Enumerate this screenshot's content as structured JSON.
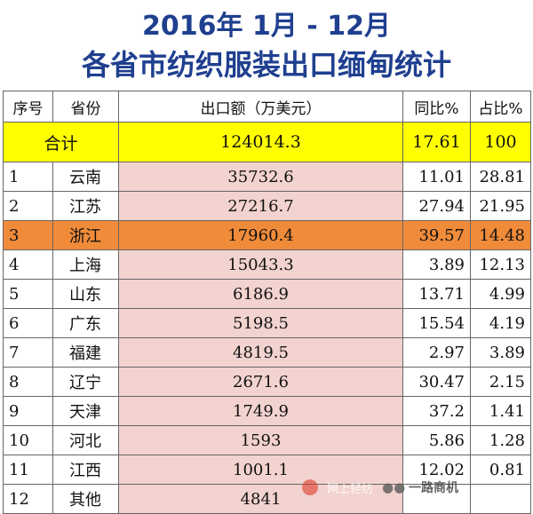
{
  "title": {
    "line1": "2016年 1月 - 12月",
    "line2": "各省市纺织服装出口缅甸统计"
  },
  "table": {
    "headers": [
      "序号",
      "省份",
      "出口额（万美元）",
      "同比%",
      "占比%"
    ],
    "total": {
      "label": "合计",
      "value": "124014.3",
      "yoy": "17.61",
      "share": "100"
    },
    "rows": [
      {
        "idx": "1",
        "province": "云南",
        "value": "35732.6",
        "yoy": "11.01",
        "share": "28.81"
      },
      {
        "idx": "2",
        "province": "江苏",
        "value": "27216.7",
        "yoy": "27.94",
        "share": "21.95"
      },
      {
        "idx": "3",
        "province": "浙江",
        "value": "17960.4",
        "yoy": "39.57",
        "share": "14.48"
      },
      {
        "idx": "4",
        "province": "上海",
        "value": "15043.3",
        "yoy": "3.89",
        "share": "12.13"
      },
      {
        "idx": "5",
        "province": "山东",
        "value": "6186.9",
        "yoy": "13.71",
        "share": "4.99"
      },
      {
        "idx": "6",
        "province": "广东",
        "value": "5198.5",
        "yoy": "15.54",
        "share": "4.19"
      },
      {
        "idx": "7",
        "province": "福建",
        "value": "4819.5",
        "yoy": "2.97",
        "share": "3.89"
      },
      {
        "idx": "8",
        "province": "辽宁",
        "value": "2671.6",
        "yoy": "30.47",
        "share": "2.15"
      },
      {
        "idx": "9",
        "province": "天津",
        "value": "1749.9",
        "yoy": "37.2",
        "share": "1.41"
      },
      {
        "idx": "10",
        "province": "河北",
        "value": "1593",
        "yoy": "5.86",
        "share": "1.28"
      },
      {
        "idx": "11",
        "province": "江西",
        "value": "1001.1",
        "yoy": "12.02",
        "share": "0.81"
      },
      {
        "idx": "12",
        "province": "其他",
        "value": "4841",
        "yoy": "",
        "share": ""
      }
    ]
  },
  "colors": {
    "title": "#1f3f8f",
    "total_row": "#ffff00",
    "highlight_row": "#f08b3a",
    "value_column": "#f2d3cf"
  },
  "watermark": {
    "left_text": "网上轻纺",
    "right_text": "一路商机"
  }
}
